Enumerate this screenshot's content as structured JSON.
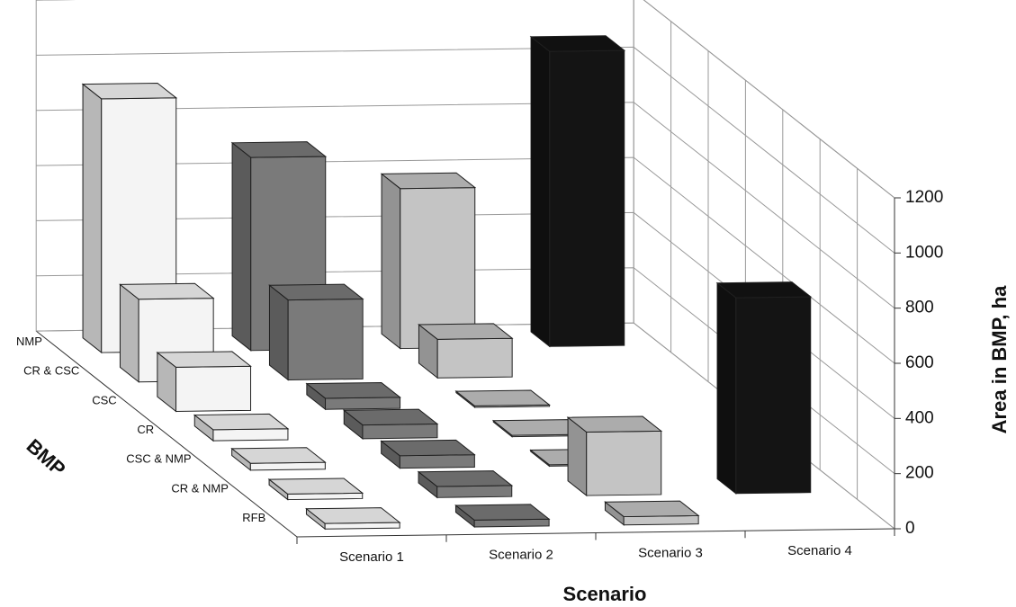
{
  "chart_data": {
    "type": "bar3d",
    "xlabel": "Scenario",
    "ylabel": "Area in BMP, ha",
    "zlabel": "BMP",
    "categories": [
      "Scenario 1",
      "Scenario 2",
      "Scenario 3",
      "Scenario 4"
    ],
    "colors": [
      "#f4f4f4",
      "#7a7a7a",
      "#c4c4c4",
      "#141414"
    ],
    "series": [
      {
        "name": "NMP",
        "values": [
          920,
          700,
          580,
          1070
        ]
      },
      {
        "name": "CR & CSC",
        "values": [
          300,
          290,
          140,
          0
        ]
      },
      {
        "name": "CSC",
        "values": [
          160,
          40,
          5,
          0
        ]
      },
      {
        "name": "CR",
        "values": [
          40,
          50,
          5,
          0
        ]
      },
      {
        "name": "CSC & NMP",
        "values": [
          25,
          45,
          5,
          0
        ]
      },
      {
        "name": "CR & NMP",
        "values": [
          20,
          40,
          230,
          710
        ]
      },
      {
        "name": "RFB",
        "values": [
          20,
          25,
          30,
          0
        ]
      }
    ],
    "ylim": [
      0,
      1200
    ],
    "yticks": [
      0,
      200,
      400,
      600,
      800,
      1000,
      1200
    ],
    "grid": true
  }
}
